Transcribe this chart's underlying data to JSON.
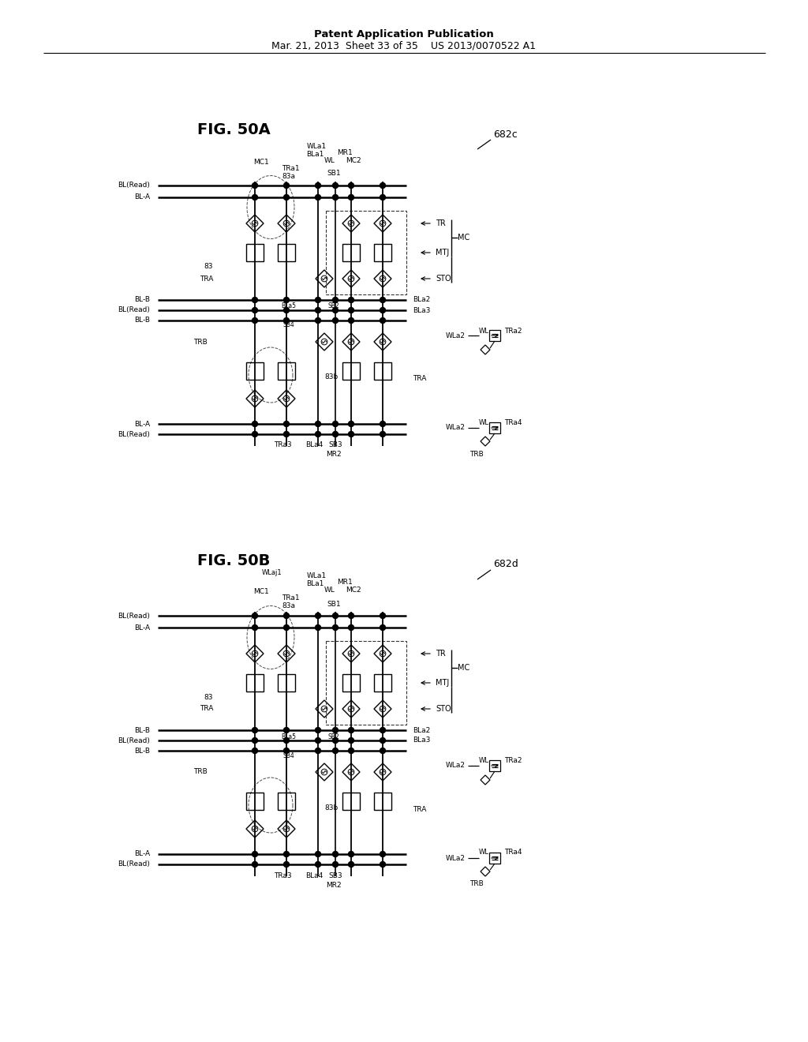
{
  "title_text": "Patent Application Publication  Mar. 21, 2013 Sheet 33 of 35  US 2013/0070522 A1",
  "fig50a_label": "FIG. 50A",
  "fig50b_label": "FIG. 50B",
  "ref_682c": "682c",
  "ref_682d": "682d",
  "bg_color": "#e8e8e8",
  "inner_bg": "#ffffff",
  "line_color": "#000000",
  "text_color": "#000000"
}
